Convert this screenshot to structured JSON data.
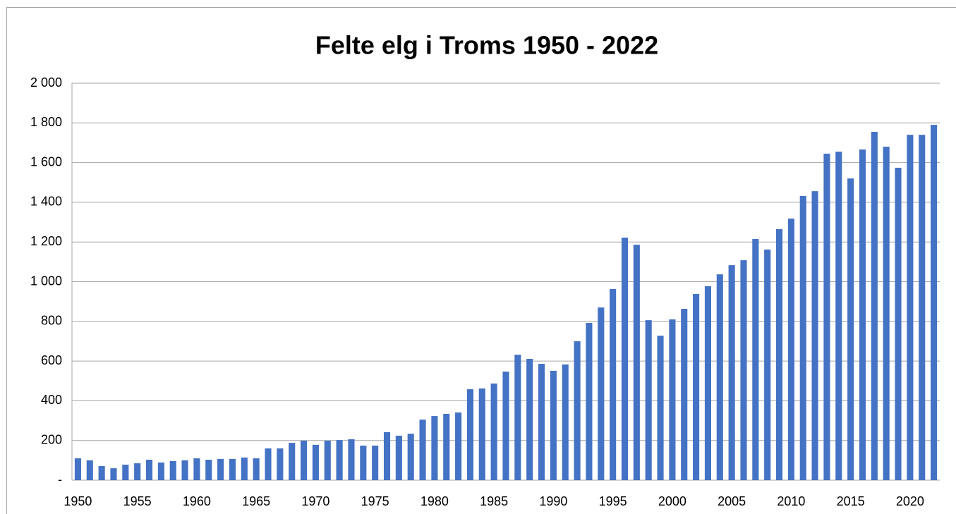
{
  "chart_data": {
    "type": "bar",
    "title": "Felte elg i Troms 1950 - 2022",
    "categories": [
      "1950",
      null,
      null,
      null,
      null,
      "1955",
      null,
      null,
      null,
      null,
      "1960",
      null,
      null,
      null,
      null,
      "1965",
      null,
      null,
      null,
      null,
      "1970",
      null,
      null,
      null,
      null,
      "1975",
      null,
      null,
      null,
      null,
      "1980",
      null,
      null,
      null,
      null,
      "1985",
      null,
      null,
      null,
      null,
      "1990",
      null,
      null,
      null,
      null,
      "1995",
      null,
      null,
      null,
      null,
      "2000",
      null,
      null,
      null,
      null,
      "2005",
      null,
      null,
      null,
      null,
      "2010",
      null,
      null,
      null,
      null,
      "2015",
      null,
      null,
      null,
      null,
      "2020",
      null,
      null
    ],
    "values": [
      110,
      100,
      71,
      60,
      78,
      85,
      103,
      89,
      96,
      100,
      110,
      103,
      107,
      107,
      114,
      110,
      160,
      160,
      188,
      199,
      178,
      199,
      202,
      206,
      174,
      174,
      242,
      224,
      234,
      305,
      323,
      334,
      341,
      458,
      462,
      487,
      547,
      632,
      611,
      586,
      551,
      583,
      700,
      792,
      870,
      963,
      1222,
      1186,
      806,
      728,
      810,
      863,
      938,
      977,
      1037,
      1083,
      1108,
      1215,
      1162,
      1265,
      1318,
      1432,
      1456,
      1645,
      1655,
      1520,
      1666,
      1755,
      1680,
      1574,
      1740,
      1740,
      1790
    ],
    "color": "#4472c4",
    "ylim": [
      0,
      2000
    ],
    "yticks": [
      {
        "value": 0,
        "label": "-"
      },
      200,
      400,
      600,
      800,
      {
        "value": 1000,
        "label": "1 000"
      },
      {
        "value": 1200,
        "label": "1 200"
      },
      {
        "value": 1400,
        "label": "1 400"
      },
      {
        "value": 1600,
        "label": "1 600"
      },
      {
        "value": 1800,
        "label": "1 800"
      },
      {
        "value": 2000,
        "label": "2 000"
      }
    ],
    "grid": true
  }
}
